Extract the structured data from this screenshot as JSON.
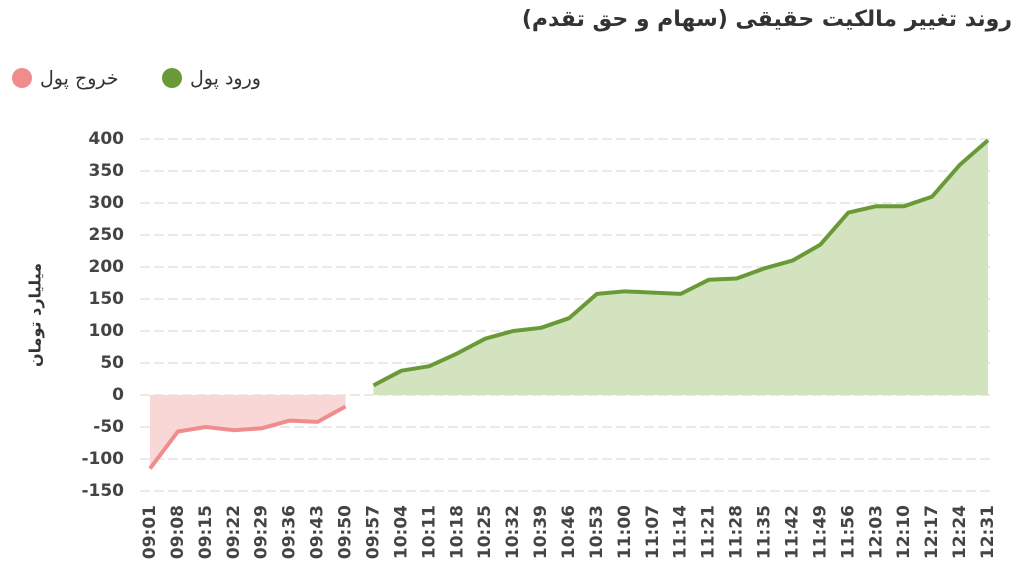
{
  "chart_data": {
    "type": "area",
    "title": "روند تغییر مالکیت حقیقی (سهام و حق تقدم)",
    "y_label": "میلیارد تومان",
    "categories": [
      "09:01",
      "09:08",
      "09:15",
      "09:22",
      "09:29",
      "09:36",
      "09:43",
      "09:50",
      "09:57",
      "10:04",
      "10:11",
      "10:18",
      "10:25",
      "10:32",
      "10:39",
      "10:46",
      "10:53",
      "11:00",
      "11:07",
      "11:14",
      "11:21",
      "11:28",
      "11:35",
      "11:42",
      "11:49",
      "11:56",
      "12:03",
      "12:10",
      "12:17",
      "12:24",
      "12:31"
    ],
    "series": [
      {
        "name": "ورود پول",
        "color": "#6a9a37",
        "fill": "#d3e3bf",
        "values": [
          null,
          null,
          null,
          null,
          null,
          null,
          null,
          null,
          15,
          38,
          45,
          65,
          88,
          100,
          105,
          120,
          158,
          162,
          160,
          158,
          180,
          182,
          198,
          210,
          235,
          285,
          295,
          295,
          310,
          360,
          398
        ]
      },
      {
        "name": "خروج پول",
        "color": "#f08c8c",
        "fill": "#f9d7d7",
        "values": [
          -115,
          -57,
          -50,
          -55,
          -52,
          -40,
          -42,
          -18,
          null,
          null,
          null,
          null,
          null,
          null,
          null,
          null,
          null,
          null,
          null,
          null,
          null,
          null,
          null,
          null,
          null,
          null,
          null,
          null,
          null,
          null,
          null
        ]
      }
    ],
    "ylim": [
      -150,
      400
    ],
    "yticks": [
      -150,
      -100,
      -50,
      0,
      50,
      100,
      150,
      200,
      250,
      300,
      350,
      400
    ],
    "grid": true
  }
}
